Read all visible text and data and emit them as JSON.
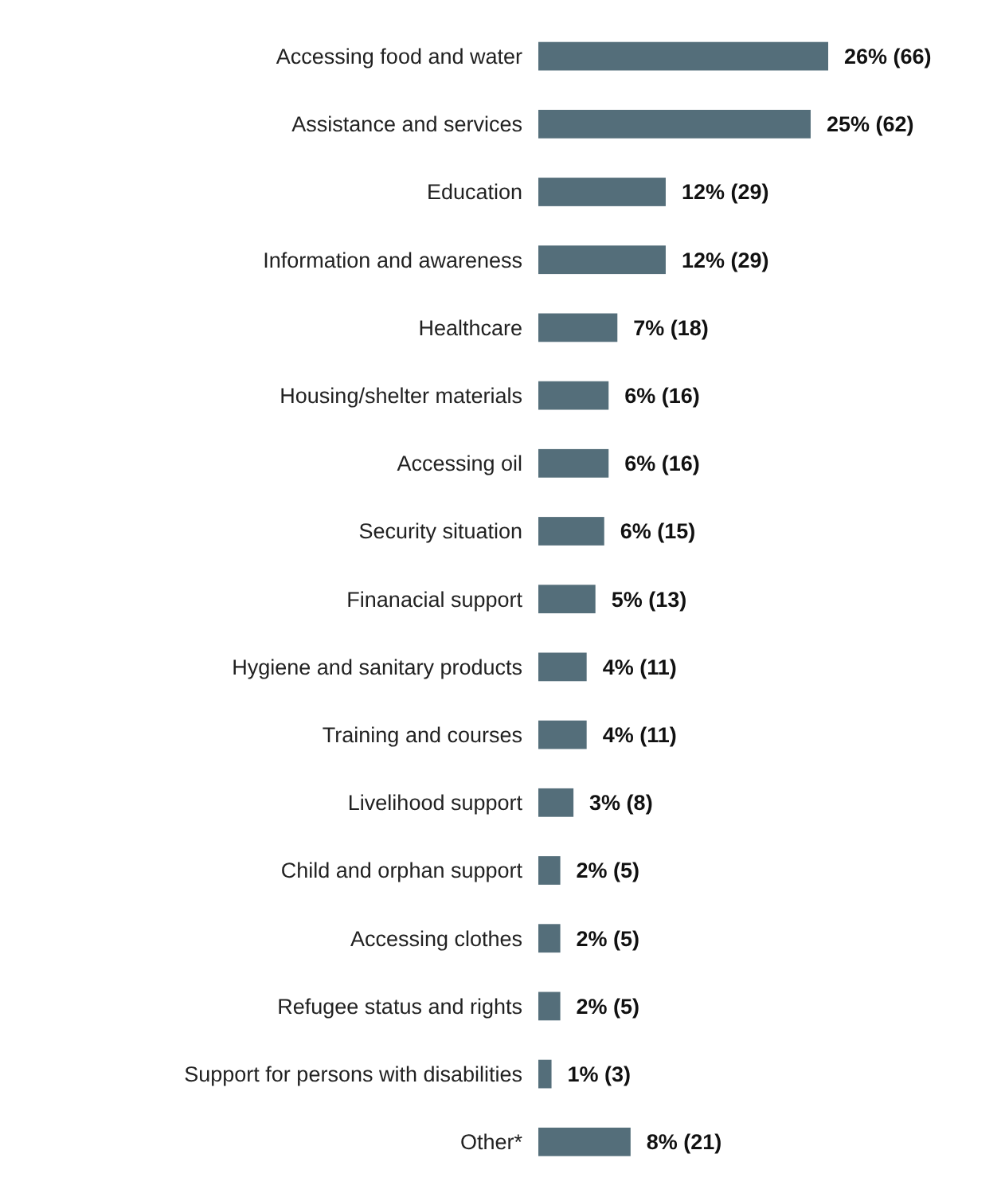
{
  "chart_data": {
    "type": "bar",
    "orientation": "horizontal",
    "categories": [
      "Accessing food and water",
      "Assistance and services",
      "Education",
      "Information and awareness",
      "Healthcare",
      "Housing/shelter materials",
      "Accessing oil",
      "Security situation",
      "Finanacial support",
      "Hygiene and sanitary products",
      "Training and courses",
      "Livelihood support",
      "Child and orphan support",
      "Accessing clothes",
      "Refugee status and rights",
      "Support for persons with disabilities",
      "Other*"
    ],
    "values": [
      66,
      62,
      29,
      29,
      18,
      16,
      16,
      15,
      13,
      11,
      11,
      8,
      5,
      5,
      5,
      3,
      21
    ],
    "value_labels": [
      "26% (66)",
      "25% (62)",
      "12% (29)",
      "12% (29)",
      "7% (18)",
      "6% (16)",
      "6% (16)",
      "6% (15)",
      "5% (13)",
      "4% (11)",
      "4% (11)",
      "3% (8)",
      "2% (5)",
      "2% (5)",
      "2% (5)",
      "1% (3)",
      "8% (21)"
    ],
    "color": "#546e7a"
  }
}
